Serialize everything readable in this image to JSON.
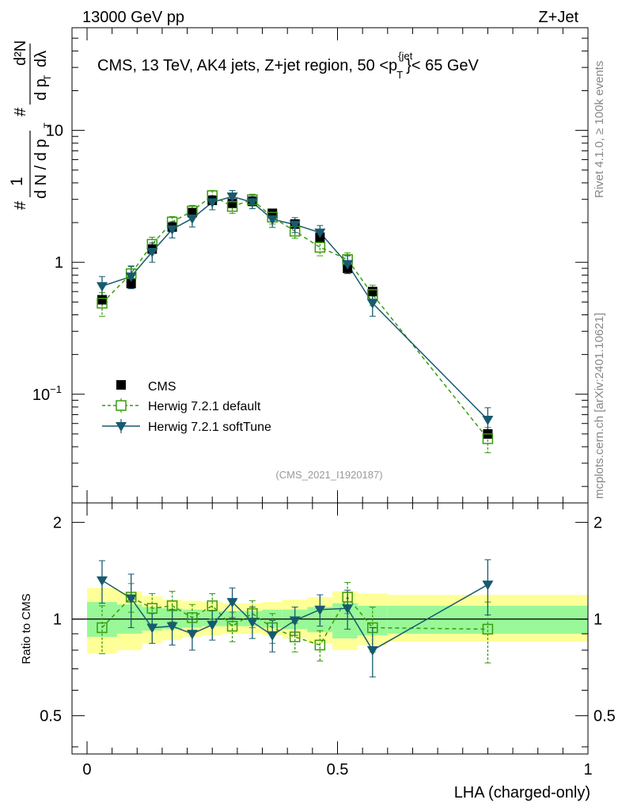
{
  "header": {
    "energy_label": "13000 GeV pp",
    "process_label": "Z+Jet",
    "title": "CMS, 13 TeV, AK4 jets, Z+jet region, 50 <p",
    "title_sup": "{jet",
    "title_sub": "T",
    "title_tail": "}< 65 GeV",
    "side_rivet": "Rivet 4.1.0, ≥ 100k events",
    "side_mcplots": "mcplots.cern.ch [arXiv:2401.10621]",
    "analysis_id": "(CMS_2021_I1920187)"
  },
  "colors": {
    "data": "#000000",
    "herwig_default": "#3a9b0e",
    "herwig_softtune": "#175a6e",
    "band_inner": "#98f898",
    "band_outer": "#ffff98"
  },
  "chart_data": [
    {
      "type": "scatter",
      "panel": "main",
      "ylabel_parts": [
        "#",
        "1",
        "d N / d p",
        "T",
        "#",
        "d p",
        "T",
        "d²N",
        "dλ"
      ],
      "xlim": [
        -0.03,
        1.0
      ],
      "ylim": [
        0.015,
        60
      ],
      "yscale": "log",
      "yticks": [
        {
          "value": 0.1,
          "base": "10",
          "exp": "−1"
        },
        {
          "value": 1,
          "label": "1"
        },
        {
          "value": 10,
          "label": "10"
        }
      ],
      "x": [
        0.03,
        0.088,
        0.13,
        0.17,
        0.21,
        0.25,
        0.29,
        0.33,
        0.37,
        0.415,
        0.465,
        0.52,
        0.57,
        0.8
      ],
      "series": [
        {
          "name": "CMS",
          "values": [
            0.52,
            0.69,
            1.26,
            1.85,
            2.38,
            2.95,
            2.8,
            2.9,
            2.35,
            1.95,
            1.55,
            0.9,
            0.6,
            0.05
          ],
          "errors": [
            0.03,
            0.03,
            0.05,
            0.06,
            0.07,
            0.08,
            0.08,
            0.08,
            0.07,
            0.06,
            0.06,
            0.04,
            0.03,
            0.003
          ]
        },
        {
          "name": "Herwig 7.2.1 default",
          "values": [
            0.49,
            0.82,
            1.37,
            2.02,
            2.45,
            3.2,
            2.65,
            2.98,
            2.2,
            1.72,
            1.3,
            1.05,
            0.57,
            0.046
          ],
          "errors": [
            0.1,
            0.12,
            0.18,
            0.2,
            0.25,
            0.3,
            0.3,
            0.3,
            0.25,
            0.2,
            0.18,
            0.13,
            0.1,
            0.01
          ]
        },
        {
          "name": "Herwig 7.2.1 softTune",
          "values": [
            0.66,
            0.78,
            1.2,
            1.78,
            2.15,
            2.85,
            3.15,
            2.85,
            2.12,
            1.93,
            1.68,
            0.97,
            0.49,
            0.064
          ],
          "errors": [
            0.12,
            0.15,
            0.2,
            0.25,
            0.3,
            0.35,
            0.35,
            0.3,
            0.28,
            0.25,
            0.22,
            0.15,
            0.1,
            0.015
          ]
        }
      ]
    },
    {
      "type": "scatter",
      "panel": "ratio",
      "ylabel": "Ratio to CMS",
      "xlabel": "LHA (charged-only)",
      "xlim": [
        -0.03,
        1.0
      ],
      "ylim": [
        0.38,
        2.3
      ],
      "yscale": "log",
      "yticks": [
        0.5,
        1,
        2
      ],
      "xticks": [
        0,
        0.5,
        1
      ],
      "bin_edges": [
        0,
        0.06,
        0.11,
        0.15,
        0.19,
        0.23,
        0.27,
        0.31,
        0.35,
        0.39,
        0.44,
        0.49,
        0.54,
        0.6,
        1.0
      ],
      "band_inner": [
        [
          0.88,
          1.13
        ],
        [
          0.9,
          1.11
        ],
        [
          0.92,
          1.09
        ],
        [
          0.93,
          1.08
        ],
        [
          0.94,
          1.07
        ],
        [
          0.95,
          1.06
        ],
        [
          0.95,
          1.06
        ],
        [
          0.95,
          1.06
        ],
        [
          0.94,
          1.07
        ],
        [
          0.93,
          1.07
        ],
        [
          0.91,
          1.09
        ],
        [
          0.87,
          1.12
        ],
        [
          0.89,
          1.1
        ],
        [
          0.9,
          1.1
        ]
      ],
      "band_outer": [
        [
          0.78,
          1.25
        ],
        [
          0.8,
          1.22
        ],
        [
          0.84,
          1.18
        ],
        [
          0.86,
          1.15
        ],
        [
          0.88,
          1.14
        ],
        [
          0.89,
          1.13
        ],
        [
          0.9,
          1.12
        ],
        [
          0.9,
          1.12
        ],
        [
          0.89,
          1.13
        ],
        [
          0.87,
          1.15
        ],
        [
          0.84,
          1.17
        ],
        [
          0.8,
          1.22
        ],
        [
          0.83,
          1.2
        ],
        [
          0.85,
          1.19
        ]
      ],
      "x": [
        0.03,
        0.088,
        0.13,
        0.17,
        0.21,
        0.25,
        0.29,
        0.33,
        0.37,
        0.415,
        0.465,
        0.52,
        0.57,
        0.8
      ],
      "series": [
        {
          "name": "Herwig 7.2.1 default",
          "values": [
            0.94,
            1.17,
            1.08,
            1.1,
            1.01,
            1.1,
            0.95,
            1.04,
            0.94,
            0.88,
            0.83,
            1.17,
            0.94,
            0.93
          ],
          "errors": [
            0.16,
            0.12,
            0.12,
            0.12,
            0.1,
            0.1,
            0.1,
            0.1,
            0.1,
            0.09,
            0.09,
            0.13,
            0.15,
            0.2
          ]
        },
        {
          "name": "Herwig 7.2.1 softTune",
          "values": [
            1.32,
            1.16,
            0.94,
            0.95,
            0.9,
            0.96,
            1.13,
            0.98,
            0.89,
            0.99,
            1.07,
            1.08,
            0.8,
            1.28
          ],
          "errors": [
            0.2,
            0.22,
            0.1,
            0.12,
            0.1,
            0.1,
            0.12,
            0.11,
            0.1,
            0.1,
            0.12,
            0.15,
            0.14,
            0.25
          ]
        }
      ]
    }
  ]
}
